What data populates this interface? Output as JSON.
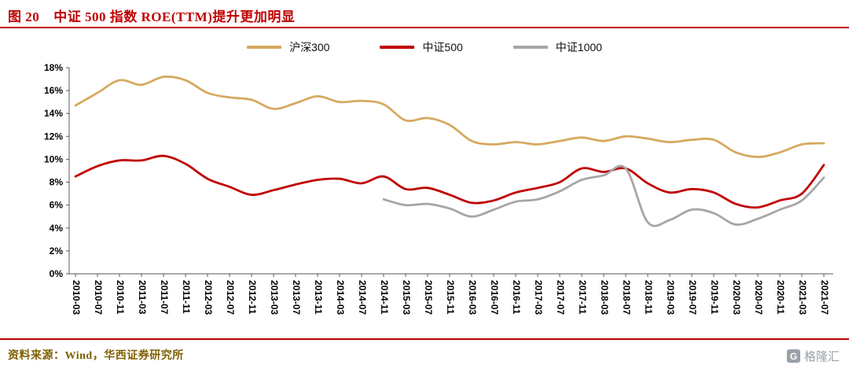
{
  "header": {
    "figure_label": "图 20",
    "title": "中证 500 指数 ROE(TTM)提升更加明显"
  },
  "footer": {
    "source": "资料来源：Wind，华西证券研究所"
  },
  "logo": {
    "icon_letter": "G",
    "text": "格隆汇"
  },
  "colors": {
    "accent_red": "#C00000",
    "source_text": "#7F6000",
    "logo_gray": "#9AA0A8",
    "axis": "#595959"
  },
  "chart_data": {
    "type": "line",
    "title": "",
    "xlabel": "",
    "ylabel": "",
    "ylim": [
      0,
      18
    ],
    "ytick_step": 2,
    "ytick_labels": [
      "0%",
      "2%",
      "4%",
      "6%",
      "8%",
      "10%",
      "12%",
      "14%",
      "16%",
      "18%"
    ],
    "grid": false,
    "legend_position": "top-center",
    "categories": [
      "2010-03",
      "2010-07",
      "2010-11",
      "2011-03",
      "2011-07",
      "2011-11",
      "2012-03",
      "2012-07",
      "2012-11",
      "2013-03",
      "2013-07",
      "2013-11",
      "2014-03",
      "2014-07",
      "2014-11",
      "2015-03",
      "2015-07",
      "2015-11",
      "2016-03",
      "2016-07",
      "2016-11",
      "2017-03",
      "2017-07",
      "2017-11",
      "2018-03",
      "2018-07",
      "2018-11",
      "2019-03",
      "2019-07",
      "2019-11",
      "2020-03",
      "2020-07",
      "2020-11",
      "2021-03",
      "2021-07"
    ],
    "series": [
      {
        "name": "沪深300",
        "color": "#D6A95F",
        "values": [
          14.7,
          15.8,
          16.9,
          16.5,
          17.2,
          16.9,
          15.8,
          15.4,
          15.2,
          14.4,
          14.9,
          15.5,
          15.0,
          15.1,
          14.8,
          13.4,
          13.6,
          13.0,
          11.6,
          11.3,
          11.5,
          11.3,
          11.6,
          11.9,
          11.6,
          12.0,
          11.8,
          11.5,
          11.7,
          11.7,
          10.6,
          10.2,
          10.6,
          11.3,
          11.4
        ]
      },
      {
        "name": "中证500",
        "color": "#C00000",
        "values": [
          8.5,
          9.4,
          9.9,
          9.9,
          10.3,
          9.6,
          8.3,
          7.6,
          6.9,
          7.3,
          7.8,
          8.2,
          8.3,
          7.9,
          8.5,
          7.4,
          7.5,
          6.9,
          6.2,
          6.4,
          7.1,
          7.5,
          8.0,
          9.2,
          8.9,
          9.2,
          7.9,
          7.1,
          7.4,
          7.1,
          6.1,
          5.8,
          6.4,
          7.0,
          9.5
        ]
      },
      {
        "name": "中证1000",
        "color": "#A6A6A6",
        "values": [
          null,
          null,
          null,
          null,
          null,
          null,
          null,
          null,
          null,
          null,
          null,
          null,
          null,
          null,
          6.5,
          6.0,
          6.1,
          5.7,
          5.0,
          5.6,
          6.3,
          6.5,
          7.2,
          8.2,
          8.6,
          9.2,
          4.5,
          4.7,
          5.6,
          5.3,
          4.3,
          4.8,
          5.6,
          6.4,
          8.4
        ]
      }
    ]
  }
}
